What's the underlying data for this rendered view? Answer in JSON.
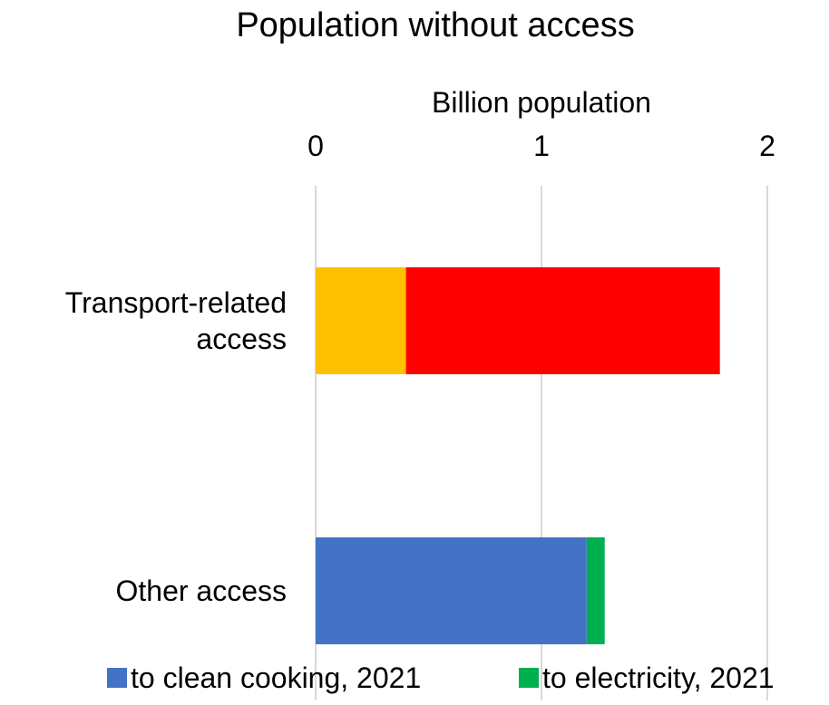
{
  "chart_data": {
    "type": "bar",
    "orientation": "horizontal",
    "stacked": true,
    "title": "Population without access",
    "xlabel": "Billion population",
    "x_axis_position": "top",
    "xlim": [
      0,
      2
    ],
    "x_ticks": [
      0,
      1,
      2
    ],
    "grid": true,
    "categories": [
      "Transport-related access",
      "Other access"
    ],
    "category_lines": [
      [
        "Transport-related",
        "access"
      ],
      [
        "Other access"
      ]
    ],
    "series": [
      {
        "name": "",
        "color": "#FFC000",
        "values": [
          0.4,
          0
        ]
      },
      {
        "name": "",
        "color": "#FF0000",
        "values": [
          1.39,
          0
        ]
      },
      {
        "name": "to clean cooking, 2021",
        "color": "#4472C4",
        "values": [
          0,
          1.2
        ]
      },
      {
        "name": "to electricity, 2021",
        "color": "#00B050",
        "values": [
          0,
          0.08
        ]
      }
    ],
    "legend": {
      "position": "bottom",
      "entries": [
        "to clean cooking, 2021",
        "to electricity, 2021"
      ]
    }
  }
}
